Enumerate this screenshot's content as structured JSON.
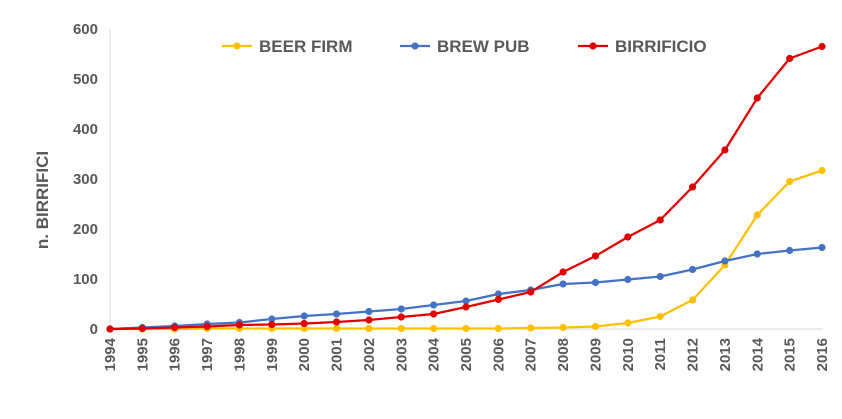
{
  "chart_data": {
    "type": "line",
    "title": "",
    "xlabel": "",
    "ylabel": "n. BIRRIFICI",
    "ylim": [
      0,
      600
    ],
    "yticks": [
      0,
      100,
      200,
      300,
      400,
      500,
      600
    ],
    "grid": false,
    "legend_position": "top",
    "categories": [
      "1994",
      "1995",
      "1996",
      "1997",
      "1998",
      "1999",
      "2000",
      "2001",
      "2002",
      "2003",
      "2004",
      "2005",
      "2006",
      "2007",
      "2008",
      "2009",
      "2010",
      "2011",
      "2012",
      "2013",
      "2014",
      "2015",
      "2016"
    ],
    "series": [
      {
        "name": "BEER FIRM",
        "color": "#FFC000",
        "values": [
          0,
          0,
          0,
          1,
          1,
          1,
          1,
          1,
          1,
          1,
          1,
          1,
          1,
          2,
          3,
          5,
          12,
          25,
          58,
          128,
          228,
          295,
          317
        ]
      },
      {
        "name": "BREW PUB",
        "color": "#4472C4",
        "values": [
          0,
          3,
          6,
          10,
          13,
          20,
          26,
          30,
          35,
          40,
          48,
          56,
          70,
          78,
          90,
          93,
          99,
          105,
          119,
          136,
          150,
          157,
          163
        ]
      },
      {
        "name": "BIRRIFICIO",
        "color": "#E00000",
        "values": [
          0,
          1,
          3,
          5,
          8,
          9,
          11,
          14,
          18,
          24,
          30,
          44,
          59,
          74,
          114,
          146,
          184,
          218,
          284,
          358,
          462,
          541,
          565
        ]
      }
    ]
  }
}
